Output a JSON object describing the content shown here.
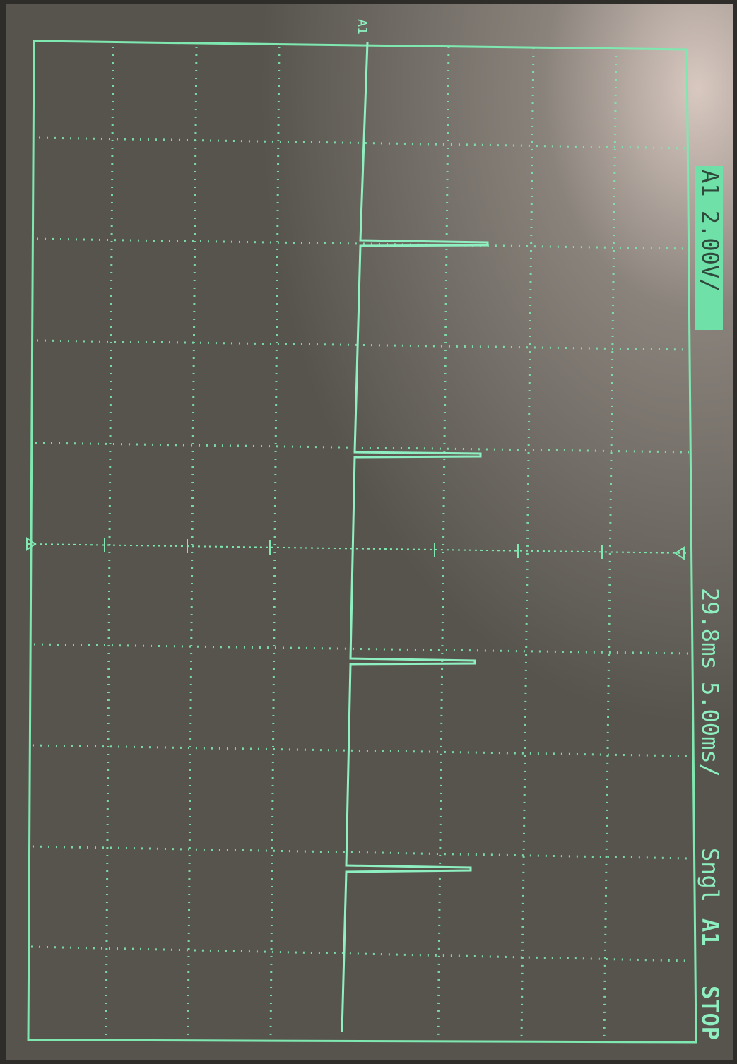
{
  "ground_marker": "A1",
  "channel_scale": "A1 2.00V/",
  "trigger_time": "29.8ms",
  "timebase": "5.00ms/",
  "mode": "Sngl",
  "trigger_source": "A1",
  "status": "STOP"
}
